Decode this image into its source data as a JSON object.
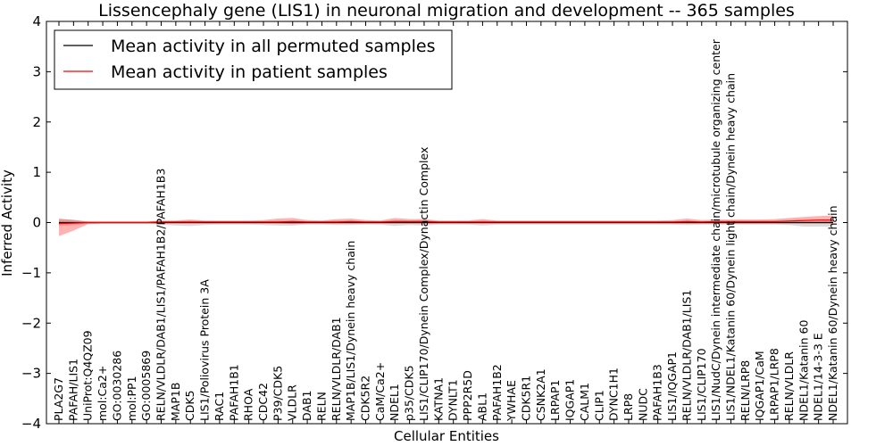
{
  "chart_data": {
    "type": "line",
    "title": "Lissencephaly gene (LIS1) in neuronal migration and development -- 365 samples",
    "xlabel": "Cellular Entities",
    "ylabel": "Inferred Activity",
    "ylim": [
      -4,
      4
    ],
    "yticks": [
      "−4",
      "−3",
      "−2",
      "−1",
      "0",
      "1",
      "2",
      "3",
      "4"
    ],
    "legend_position": "top-left",
    "categories": [
      "PLA2G7",
      "PAFAH/LIS1",
      "UniProt:Q4QZ09",
      "mol:Ca2+",
      "GO:0030286",
      "mol:PP1",
      "GO:0005869",
      "RELN/VLDLR/DAB1/LIS1/PAFAH1B2/PAFAH1B3",
      "MAP1B",
      "CDK5",
      "LIS1/Poliovirus Protein 3A",
      "RAC1",
      "PAFAH1B1",
      "RHOA",
      "CDC42",
      "P39/CDK5",
      "VLDLR",
      "DAB1",
      "RELN",
      "RELN/VLDLR/DAB1",
      "MAP1B/LIS1/Dynein heavy chain",
      "CDK5R2",
      "CaM/Ca2+",
      "NDEL1",
      "p35/CDK5",
      "LIS1/CLIP170/Dynein Complex/Dynactin Complex",
      "KATNA1",
      "DYNLT1",
      "PPP2R5D",
      "ABL1",
      "PAFAH1B2",
      "YWHAE",
      "CDK5R1",
      "CSNK2A1",
      "LRPAP1",
      "IQGAP1",
      "CALM1",
      "CLIP1",
      "DYNC1H1",
      "LRP8",
      "NUDC",
      "PAFAH1B3",
      "LIS1/IQGAP1",
      "RELN/VLDLR/DAB1/LIS1",
      "LIS1/CLIP170",
      "LIS1/NudC/Dynein intermediate chain/microtubule organizing center",
      "LIS1/NDEL1/Katanin 60/Dynein light chain/Dynein heavy chain",
      "RELN/LRP8",
      "IQGAP1/CaM",
      "LRPAP1/LRP8",
      "RELN/VLDLR",
      "NDEL1/Katanin 60",
      "NDEL1/14-3-3 E",
      "NDEL1/Katanin 60/Dynein heavy chain"
    ],
    "series": [
      {
        "name": "Mean activity in all permuted samples",
        "color": "#000000",
        "values": [
          0,
          0,
          0,
          0,
          0,
          0,
          0,
          0,
          0,
          0,
          0,
          0,
          0,
          0,
          0,
          0,
          0,
          0,
          0,
          0,
          0,
          0,
          0,
          0,
          0,
          0,
          0,
          0,
          0,
          0,
          0,
          0,
          0,
          0,
          0,
          0,
          0,
          0,
          0,
          0,
          0,
          0,
          0,
          0,
          0,
          0,
          0,
          0,
          0,
          0,
          0,
          0,
          0,
          0
        ],
        "band_upper": [
          0.07,
          0.06,
          0.02,
          0.02,
          0.02,
          0.02,
          0.02,
          0.03,
          0.03,
          0.04,
          0.03,
          0.03,
          0.03,
          0.03,
          0.03,
          0.04,
          0.04,
          0.03,
          0.03,
          0.04,
          0.04,
          0.03,
          0.03,
          0.05,
          0.04,
          0.05,
          0.03,
          0.03,
          0.03,
          0.04,
          0.03,
          0.03,
          0.03,
          0.03,
          0.03,
          0.03,
          0.03,
          0.03,
          0.03,
          0.03,
          0.03,
          0.03,
          0.03,
          0.04,
          0.03,
          0.03,
          0.03,
          0.03,
          0.03,
          0.03,
          0.04,
          0.05,
          0.05,
          0.05
        ],
        "band_lower": [
          -0.07,
          -0.05,
          -0.02,
          -0.02,
          -0.02,
          -0.02,
          -0.02,
          -0.04,
          -0.06,
          -0.07,
          -0.05,
          -0.04,
          -0.04,
          -0.04,
          -0.05,
          -0.06,
          -0.06,
          -0.04,
          -0.04,
          -0.05,
          -0.05,
          -0.04,
          -0.04,
          -0.07,
          -0.05,
          -0.06,
          -0.04,
          -0.04,
          -0.04,
          -0.06,
          -0.04,
          -0.04,
          -0.04,
          -0.04,
          -0.04,
          -0.04,
          -0.04,
          -0.04,
          -0.04,
          -0.04,
          -0.04,
          -0.04,
          -0.04,
          -0.05,
          -0.04,
          -0.04,
          -0.04,
          -0.04,
          -0.04,
          -0.04,
          -0.05,
          -0.08,
          -0.08,
          -0.08
        ]
      },
      {
        "name": "Mean activity in patient samples",
        "color": "#ff0000",
        "values": [
          -0.02,
          -0.01,
          0,
          0,
          0,
          0,
          0,
          0.01,
          0.01,
          0.01,
          0.01,
          0.01,
          0.01,
          0.01,
          0.01,
          0.01,
          0.02,
          0.01,
          0.01,
          0.01,
          0.02,
          0.01,
          0.01,
          0.02,
          0.02,
          0.02,
          0.01,
          0.01,
          0.01,
          0.01,
          0.01,
          0.01,
          0.01,
          0.01,
          0.01,
          0.01,
          0.01,
          0.01,
          0.01,
          0.01,
          0.01,
          0.01,
          0.01,
          0.02,
          0.01,
          0.02,
          0.02,
          0.02,
          0.02,
          0.02,
          0.03,
          0.04,
          0.05,
          0.05
        ],
        "band_upper": [
          0.08,
          0.05,
          0.02,
          0.02,
          0.02,
          0.02,
          0.02,
          0.04,
          0.04,
          0.06,
          0.04,
          0.04,
          0.04,
          0.04,
          0.05,
          0.08,
          0.09,
          0.05,
          0.04,
          0.07,
          0.08,
          0.05,
          0.04,
          0.09,
          0.07,
          0.07,
          0.04,
          0.04,
          0.04,
          0.07,
          0.04,
          0.04,
          0.04,
          0.04,
          0.04,
          0.04,
          0.04,
          0.04,
          0.04,
          0.04,
          0.04,
          0.04,
          0.05,
          0.08,
          0.05,
          0.06,
          0.06,
          0.06,
          0.06,
          0.07,
          0.09,
          0.11,
          0.13,
          0.14
        ],
        "band_lower": [
          -0.27,
          -0.16,
          -0.03,
          -0.02,
          -0.02,
          -0.02,
          -0.02,
          -0.02,
          -0.02,
          -0.02,
          -0.02,
          -0.02,
          -0.02,
          -0.02,
          -0.02,
          -0.02,
          -0.03,
          -0.02,
          -0.02,
          -0.02,
          -0.02,
          -0.02,
          -0.02,
          -0.02,
          -0.02,
          -0.02,
          -0.02,
          -0.02,
          -0.02,
          -0.02,
          -0.02,
          -0.02,
          -0.02,
          -0.02,
          -0.02,
          -0.02,
          -0.02,
          -0.02,
          -0.02,
          -0.02,
          -0.02,
          -0.02,
          -0.02,
          -0.02,
          -0.02,
          -0.02,
          -0.02,
          -0.02,
          -0.02,
          -0.02,
          -0.02,
          -0.02,
          -0.02,
          -0.02
        ]
      }
    ]
  }
}
